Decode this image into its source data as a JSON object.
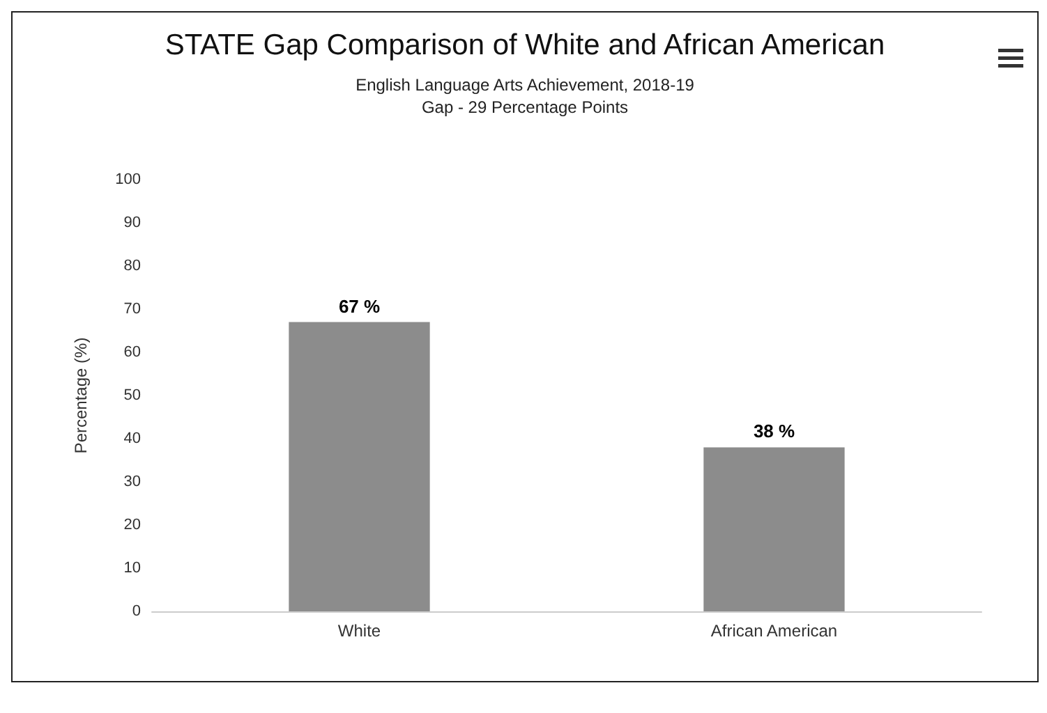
{
  "chart_data": {
    "type": "bar",
    "title": "STATE Gap Comparison of White and African American",
    "subtitle": "English Language Arts Achievement, 2018-19\nGap - 29 Percentage Points",
    "ylabel": "Percentage (%)",
    "categories": [
      "White",
      "African American"
    ],
    "values": [
      67,
      38
    ],
    "value_labels": [
      "67 %",
      "38 %"
    ],
    "color": "#8c8c8c",
    "ylim": [
      0,
      100
    ],
    "yticks": [
      0,
      10,
      20,
      30,
      40,
      50,
      60,
      70,
      80,
      90,
      100
    ],
    "grid": false
  }
}
